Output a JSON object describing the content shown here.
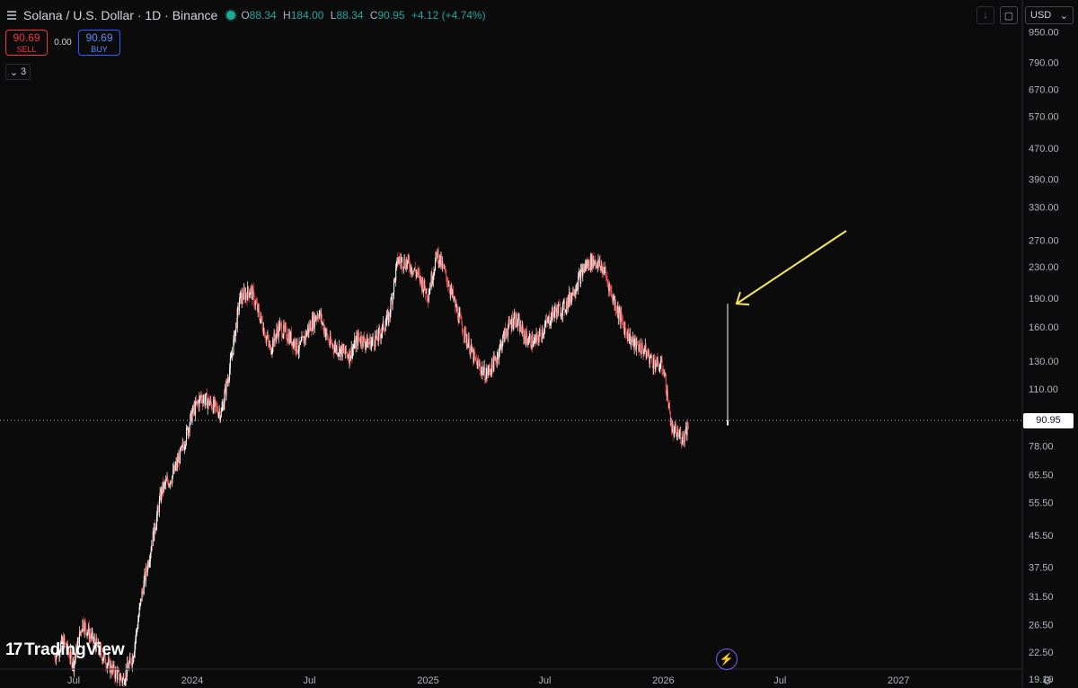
{
  "header": {
    "symbol_label": "Solana / U.S. Dollar · 1D · Binance",
    "ohlc": {
      "open_key": "O",
      "open": "88.34",
      "high_key": "H",
      "high": "184.00",
      "low_key": "L",
      "low": "88.34",
      "close_key": "C",
      "close": "90.95",
      "change": "+4.12 (+4.74%)"
    }
  },
  "trade": {
    "sell_price": "90.69",
    "sell_label": "SELL",
    "spread": "0.00",
    "buy_price": "90.69",
    "buy_label": "BUY"
  },
  "indicators_toggle": {
    "count": "3"
  },
  "toolbar": {
    "currency": "USD",
    "currency_caret": "⌄"
  },
  "brand": {
    "name": "TradingView",
    "mark": "17"
  },
  "last_price_label": "90.95",
  "colors": {
    "background": "#0b0b0b",
    "candle_up": "#ffffff",
    "candle_down": "#ef5350",
    "annotation_arrow": "#f5e663",
    "buy": "#2962ff",
    "sell": "#f23645",
    "live": "#22ab94"
  },
  "chart_data": {
    "type": "candlestick",
    "title": "Solana / U.S. Dollar · 1D · Binance",
    "y_scale": "log",
    "ylim": [
      18.5,
      1150
    ],
    "y_ticks": [
      "950.00",
      "790.00",
      "670.00",
      "570.00",
      "470.00",
      "390.00",
      "330.00",
      "270.00",
      "230.00",
      "190.00",
      "160.00",
      "130.00",
      "110.00",
      "91.00",
      "78.00",
      "65.50",
      "55.50",
      "45.50",
      "37.50",
      "31.50",
      "26.50",
      "22.50",
      "19.10"
    ],
    "x_ticks": [
      "Jul",
      "2024",
      "Jul",
      "2025",
      "Jul",
      "2026",
      "Jul",
      "2027"
    ],
    "last_price": 90.95,
    "grid": false,
    "series": [
      {
        "x": [
          "2023-06-01",
          "2023-06-15",
          "2023-07-01",
          "2023-07-15",
          "2023-08-01",
          "2023-08-15",
          "2023-09-01",
          "2023-09-15",
          "2023-10-01",
          "2023-10-15",
          "2023-11-01",
          "2023-11-15",
          "2023-12-01",
          "2023-12-15",
          "2024-01-01",
          "2024-01-15",
          "2024-02-01",
          "2024-02-15",
          "2024-03-01",
          "2024-03-15",
          "2024-04-01",
          "2024-04-15",
          "2024-05-01",
          "2024-05-15",
          "2024-06-01",
          "2024-06-15",
          "2024-07-01",
          "2024-07-15",
          "2024-08-01",
          "2024-08-15",
          "2024-09-01",
          "2024-09-15",
          "2024-10-01",
          "2024-10-15",
          "2024-11-01",
          "2024-11-15",
          "2024-12-01",
          "2024-12-15",
          "2025-01-01",
          "2025-01-15",
          "2025-02-01",
          "2025-02-15",
          "2025-03-01",
          "2025-03-15",
          "2025-04-01",
          "2025-04-15",
          "2025-05-01",
          "2025-05-15",
          "2025-06-01",
          "2025-06-15",
          "2025-07-01",
          "2025-07-15",
          "2025-08-01",
          "2025-08-15",
          "2025-09-01",
          "2025-09-15",
          "2025-10-01",
          "2025-10-15",
          "2025-11-01",
          "2025-11-15",
          "2025-12-01",
          "2025-12-15",
          "2026-01-01",
          "2026-01-15",
          "2026-02-01",
          "2026-02-10"
        ],
        "values": [
          22,
          24,
          21,
          27,
          24,
          22,
          20,
          19,
          22,
          32,
          45,
          60,
          65,
          75,
          95,
          105,
          100,
          95,
          130,
          190,
          200,
          170,
          140,
          160,
          150,
          140,
          160,
          175,
          145,
          140,
          135,
          150,
          145,
          150,
          170,
          240,
          235,
          220,
          195,
          250,
          210,
          175,
          150,
          130,
          120,
          130,
          155,
          170,
          150,
          145,
          160,
          175,
          180,
          200,
          230,
          240,
          225,
          190,
          160,
          145,
          140,
          130,
          125,
          85,
          82,
          90.95
        ],
        "last_candle": {
          "open": 88.34,
          "high": 184.0,
          "low": 88.34,
          "close": 90.95
        }
      }
    ],
    "annotations": [
      {
        "type": "arrow",
        "color": "#f5e663",
        "points_to": "last candle high"
      }
    ]
  }
}
